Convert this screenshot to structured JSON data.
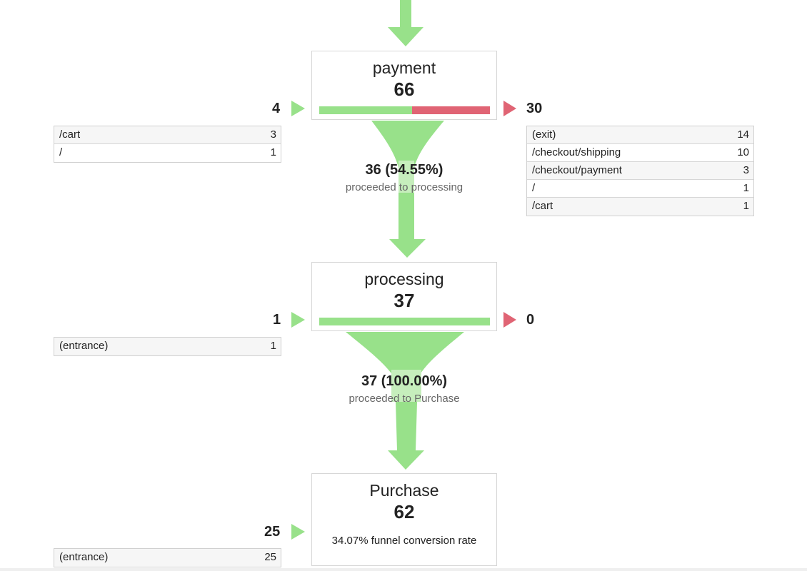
{
  "colors": {
    "flow_green": "#98e18a",
    "flow_green_light": "#c6eebc",
    "exit_red": "#e06474",
    "box_border": "#d6d6d6",
    "row_alt": "#f6f6f6"
  },
  "steps": [
    {
      "name": "payment",
      "count": "66",
      "entrances": "4",
      "exits": "30",
      "continued_fraction": 0.5455,
      "entrance_sources": [
        {
          "page": "/cart",
          "count": "3"
        },
        {
          "page": "/",
          "count": "1"
        }
      ],
      "exit_destinations": [
        {
          "page": "(exit)",
          "count": "14"
        },
        {
          "page": "/checkout/shipping",
          "count": "10"
        },
        {
          "page": "/checkout/payment",
          "count": "3"
        },
        {
          "page": "/",
          "count": "1"
        },
        {
          "page": "/cart",
          "count": "1"
        }
      ],
      "proceeded_value": "36 (54.55%)",
      "proceeded_label": "proceeded to processing"
    },
    {
      "name": "processing",
      "count": "37",
      "entrances": "1",
      "exits": "0",
      "continued_fraction": 1.0,
      "entrance_sources": [
        {
          "page": "(entrance)",
          "count": "1"
        }
      ],
      "exit_destinations": [],
      "proceeded_value": "37 (100.00%)",
      "proceeded_label": "proceeded to Purchase"
    },
    {
      "name": "Purchase",
      "count": "62",
      "entrances": "25",
      "conversion_rate": "34.07% funnel conversion rate",
      "entrance_sources": [
        {
          "page": "(entrance)",
          "count": "25"
        }
      ]
    }
  ],
  "icons": {
    "flow_down": "down-arrow-icon",
    "entrance": "entrance-arrow-icon",
    "exit": "exit-arrow-icon"
  }
}
